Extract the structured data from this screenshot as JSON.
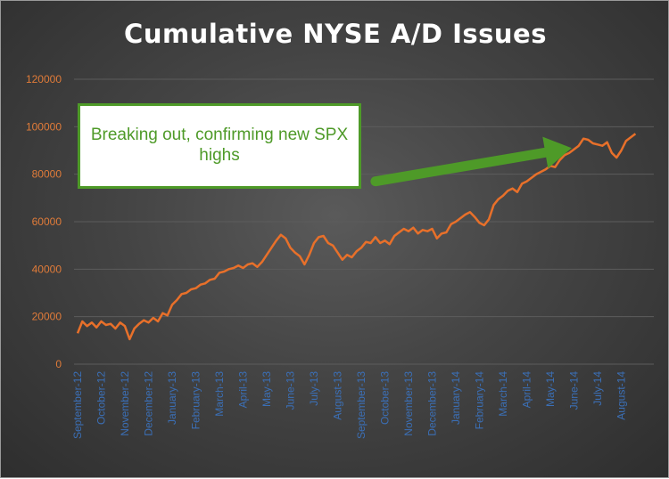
{
  "chart_data": {
    "type": "line",
    "title": "Cumulative NYSE A/D Issues",
    "xlabel": "",
    "ylabel": "",
    "ylim": [
      0,
      120000
    ],
    "yticks": [
      0,
      20000,
      40000,
      60000,
      80000,
      100000,
      120000
    ],
    "ytick_labels": [
      "0",
      "20000",
      "40000",
      "60000",
      "80000",
      "100000",
      "120000"
    ],
    "grid": true,
    "legend": "none",
    "x_tick_labels": [
      "September-12",
      "October-12",
      "November-12",
      "December-12",
      "January-13",
      "February-13",
      "March-13",
      "April-13",
      "May-13",
      "June-13",
      "July-13",
      "August-13",
      "September-13",
      "October-13",
      "November-13",
      "December-13",
      "January-14",
      "February-14",
      "March-14",
      "April-14",
      "May-14",
      "June-14",
      "July-14",
      "August-14"
    ],
    "series": [
      {
        "name": "",
        "color": "#e8702a",
        "x_index": [
          0,
          0.2,
          0.4,
          0.6,
          0.8,
          1.0,
          1.2,
          1.4,
          1.6,
          1.8,
          2.0,
          2.2,
          2.4,
          2.6,
          2.8,
          3.0,
          3.2,
          3.4,
          3.6,
          3.8,
          4.0,
          4.2,
          4.4,
          4.6,
          4.8,
          5.0,
          5.2,
          5.4,
          5.6,
          5.8,
          6.0,
          6.2,
          6.4,
          6.6,
          6.8,
          7.0,
          7.2,
          7.4,
          7.6,
          7.8,
          8.0,
          8.2,
          8.4,
          8.6,
          8.8,
          9.0,
          9.2,
          9.4,
          9.6,
          9.8,
          10.0,
          10.2,
          10.4,
          10.6,
          10.8,
          11.0,
          11.2,
          11.4,
          11.6,
          11.8,
          12.0,
          12.2,
          12.4,
          12.6,
          12.8,
          13.0,
          13.2,
          13.4,
          13.6,
          13.8,
          14.0,
          14.2,
          14.4,
          14.6,
          14.8,
          15.0,
          15.2,
          15.4,
          15.6,
          15.8,
          16.0,
          16.2,
          16.4,
          16.6,
          16.8,
          17.0,
          17.2,
          17.4,
          17.6,
          17.8,
          18.0,
          18.2,
          18.4,
          18.6,
          18.8,
          19.0,
          19.2,
          19.4,
          19.6,
          19.8,
          20.0,
          20.2,
          20.4,
          20.6,
          20.8,
          21.0,
          21.2,
          21.4,
          21.6,
          21.8,
          22.0,
          22.2,
          22.4,
          22.6,
          22.8,
          23.0,
          23.2,
          23.4,
          23.6
        ],
        "values": [
          13000,
          18000,
          16000,
          17500,
          15500,
          18000,
          16500,
          17000,
          15000,
          17500,
          16000,
          10500,
          15000,
          17000,
          18500,
          17500,
          19500,
          18000,
          21500,
          20500,
          25000,
          27000,
          29500,
          30000,
          31500,
          32000,
          33500,
          34000,
          35500,
          36000,
          38500,
          39000,
          40000,
          40500,
          41500,
          40500,
          42000,
          42500,
          41000,
          43000,
          46000,
          49000,
          52000,
          54500,
          53000,
          49000,
          47000,
          45500,
          42000,
          46000,
          51000,
          53500,
          54000,
          51000,
          50000,
          47000,
          44000,
          46000,
          45000,
          47500,
          49000,
          51500,
          51000,
          53500,
          51000,
          52000,
          50500,
          54000,
          55500,
          57000,
          56000,
          57500,
          55000,
          56500,
          56000,
          57000,
          53000,
          55000,
          55500,
          59000,
          60000,
          61500,
          63000,
          64000,
          62000,
          59500,
          58500,
          61000,
          67000,
          69500,
          71000,
          73000,
          74000,
          72500,
          76000,
          77000,
          78500,
          80000,
          81000,
          82000,
          83500,
          83000,
          86000,
          88000,
          89000,
          90500,
          92000,
          95000,
          94500,
          93000,
          92500,
          92000,
          93500,
          89000,
          87000,
          90000,
          94000,
          95500,
          97000
        ]
      }
    ],
    "annotations": [
      {
        "text": "Breaking out, confirming new SPX highs",
        "type": "callout-box"
      },
      {
        "type": "arrow",
        "color": "#4e9a28",
        "from_x_index": 12.6,
        "from_y": 77000,
        "to_x_index": 20.9,
        "to_y": 91000
      }
    ]
  },
  "colors": {
    "line": "#e8702a",
    "ytick": "#e07b39",
    "xtick": "#3b6fb6",
    "arrow": "#4e9a28",
    "callout_border": "#4e9a28",
    "callout_text": "#4e9a28",
    "title": "#ffffff"
  }
}
